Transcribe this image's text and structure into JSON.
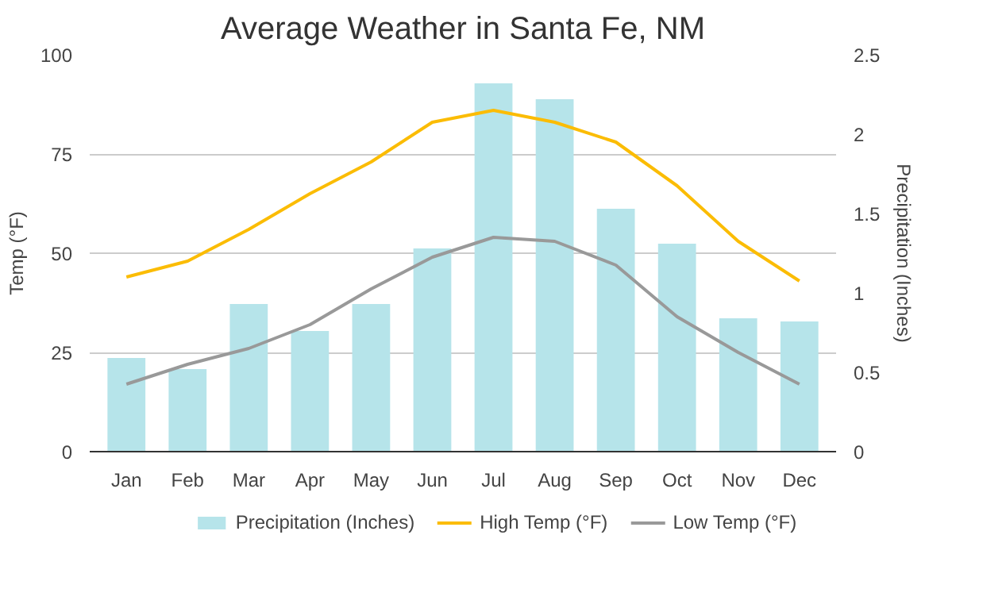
{
  "chart_data": {
    "type": "bar",
    "title": "Average Weather in Santa Fe, NM",
    "ylabel": "Temp (°F)",
    "y2label": "Precipitation (Inches)",
    "categories": [
      "Jan",
      "Feb",
      "Mar",
      "Apr",
      "May",
      "Jun",
      "Jul",
      "Aug",
      "Sep",
      "Oct",
      "Nov",
      "Dec"
    ],
    "series": [
      {
        "name": "Precipitation (Inches)",
        "axis": "y2",
        "color": "#b6e4ea",
        "values": [
          0.59,
          0.52,
          0.93,
          0.76,
          0.93,
          1.28,
          2.32,
          2.22,
          1.53,
          1.31,
          0.84,
          0.82
        ]
      },
      {
        "name": "High Temp (°F)",
        "type": "line",
        "color": "#fbbc04",
        "values": [
          44,
          48,
          56,
          65,
          73,
          83,
          86,
          83,
          78,
          67,
          53,
          43
        ]
      },
      {
        "name": "Low Temp (°F)",
        "type": "line",
        "color": "#999999",
        "values": [
          17,
          22,
          26,
          32,
          41,
          49,
          54,
          53,
          47,
          34,
          25,
          17
        ]
      }
    ],
    "ylim": [
      0,
      100
    ],
    "yticks": [
      0,
      25,
      50,
      75,
      100
    ],
    "y2lim": [
      0,
      2.5
    ],
    "y2ticks": [
      0,
      0.5,
      1,
      1.5,
      2,
      2.5
    ],
    "grid": "y",
    "legend": "bottom",
    "marker": "none",
    "line_style": "solid"
  }
}
